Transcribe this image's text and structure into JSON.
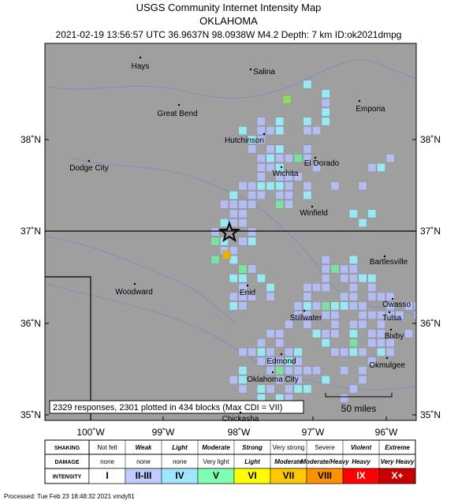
{
  "header": {
    "title": "USGS Community Internet Intensity Map",
    "region": "OKLAHOMA",
    "info": "2021-02-19 13:56:57 UTC 36.9637N 98.0938W M4.2 Depth: 7 km ID:ok2021dmpg"
  },
  "map": {
    "lat_labels": [
      "38˚N",
      "37˚N",
      "36˚N",
      "35˚N"
    ],
    "lon_labels": [
      "100˚W",
      "99˚W",
      "98˚W",
      "97˚W",
      "96˚W"
    ],
    "cities": [
      "Hays",
      "Salina",
      "Emporia",
      "Great Bend",
      "Hutchinson",
      "Dodge City",
      "El Dorado",
      "Wichita",
      "Winfield",
      "Bartlesville",
      "Woodward",
      "Enid",
      "Owasso",
      "Tulsa",
      "Stillwater",
      "Bixby",
      "Edmond",
      "Okmulgee",
      "Oklahoma City",
      "Chickasha"
    ],
    "summary": "2329 responses, 2301 plotted in 434 blocks (Max CDI = VII)",
    "scale": "50 miles"
  },
  "legend": {
    "shaking_header": "SHAKING",
    "damage_header": "DAMAGE",
    "intensity_header": "INTENSITY",
    "shaking": [
      "Not felt",
      "Weak",
      "Light",
      "Moderate",
      "Strong",
      "Very strong",
      "Severe",
      "Violent",
      "Extreme"
    ],
    "damage": [
      "none",
      "none",
      "none",
      "Very light",
      "Light",
      "Moderate",
      "Moderate/Heavy",
      "Heavy",
      "Very Heavy"
    ],
    "intensity": [
      "I",
      "II-III",
      "IV",
      "V",
      "VI",
      "VII",
      "VIII",
      "IX",
      "X+"
    ]
  },
  "footer": "Processed: Tue Feb 23 18:48:32 2021 vmdyfi1"
}
